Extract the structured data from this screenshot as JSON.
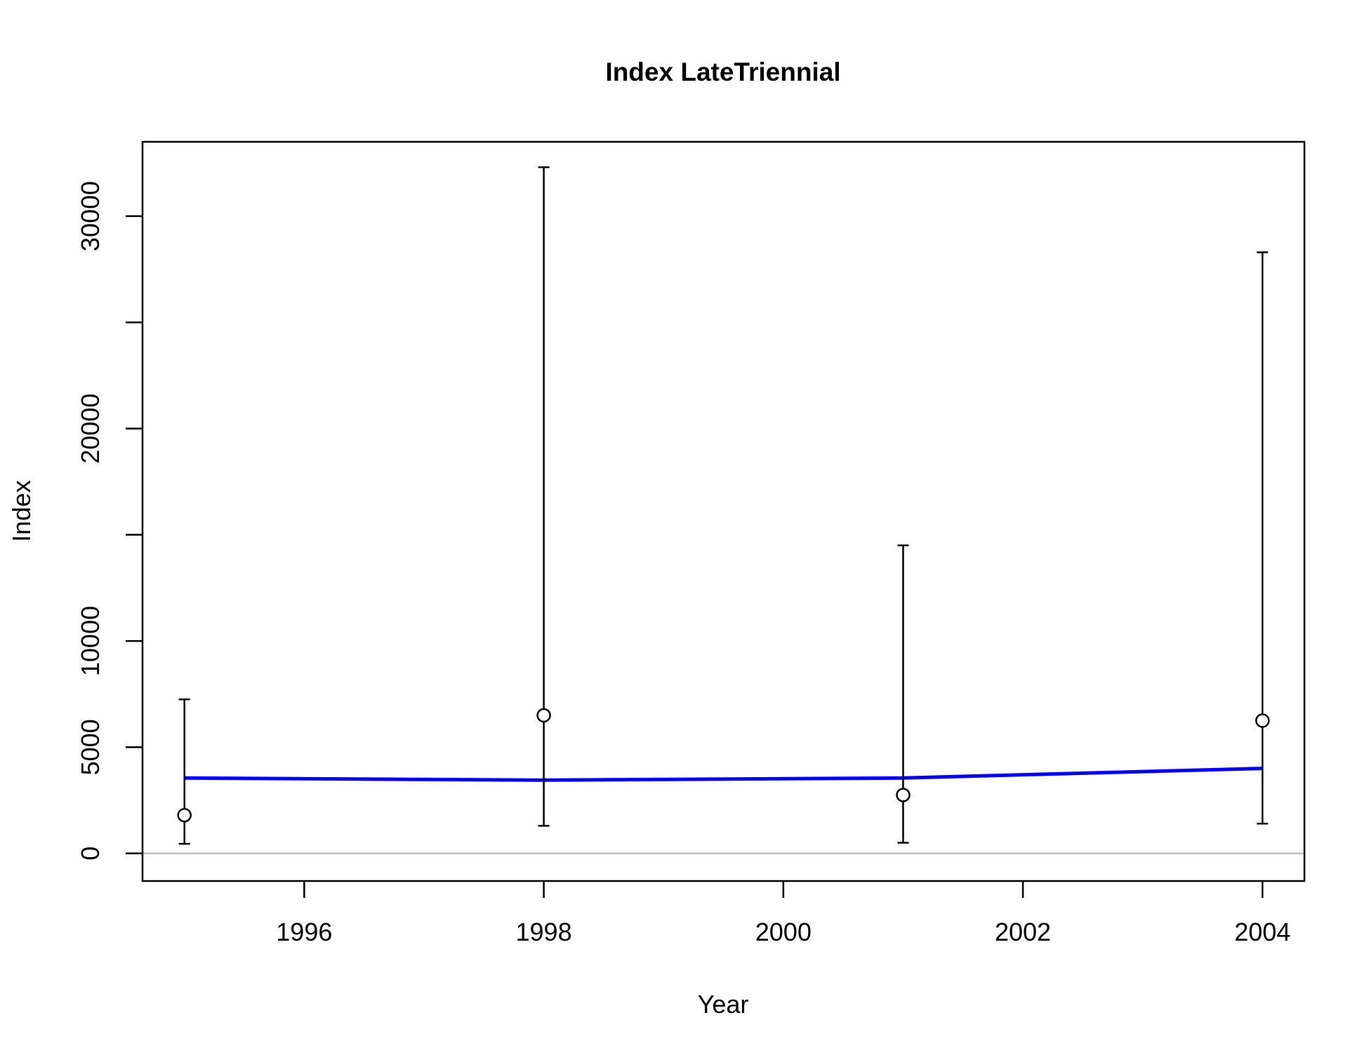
{
  "chart_data": {
    "type": "line",
    "title": "Index LateTriennial",
    "xlabel": "Year",
    "ylabel": "Index",
    "xlim": [
      1994.65,
      2004.35
    ],
    "ylim": [
      -1300,
      33500
    ],
    "x_ticks": [
      {
        "value": 1996,
        "label": "1996"
      },
      {
        "value": 1998,
        "label": "1998"
      },
      {
        "value": 2000,
        "label": "2000"
      },
      {
        "value": 2002,
        "label": "2002"
      },
      {
        "value": 2004,
        "label": "2004"
      }
    ],
    "y_ticks": [
      {
        "value": 0,
        "label": "0"
      },
      {
        "value": 5000,
        "label": "5000"
      },
      {
        "value": 10000,
        "label": "10000"
      },
      {
        "value": 15000,
        "label": ""
      },
      {
        "value": 20000,
        "label": "20000"
      },
      {
        "value": 25000,
        "label": ""
      },
      {
        "value": 30000,
        "label": "30000"
      }
    ],
    "grid": false,
    "reference_line": {
      "y": 0,
      "color": "#bebebe"
    },
    "observed": {
      "marker": "open-circle",
      "color": "#000000",
      "points": [
        {
          "x": 1995,
          "y": 1800,
          "lower": 450,
          "upper": 7250
        },
        {
          "x": 1998,
          "y": 6500,
          "lower": 1300,
          "upper": 32300
        },
        {
          "x": 2001,
          "y": 2750,
          "lower": 500,
          "upper": 14500
        },
        {
          "x": 2004,
          "y": 6250,
          "lower": 1400,
          "upper": 28300
        }
      ]
    },
    "expected": {
      "color": "#0000ff",
      "x": [
        1995,
        1998,
        2001,
        2004
      ],
      "y": [
        3550,
        3450,
        3550,
        4000
      ]
    }
  }
}
